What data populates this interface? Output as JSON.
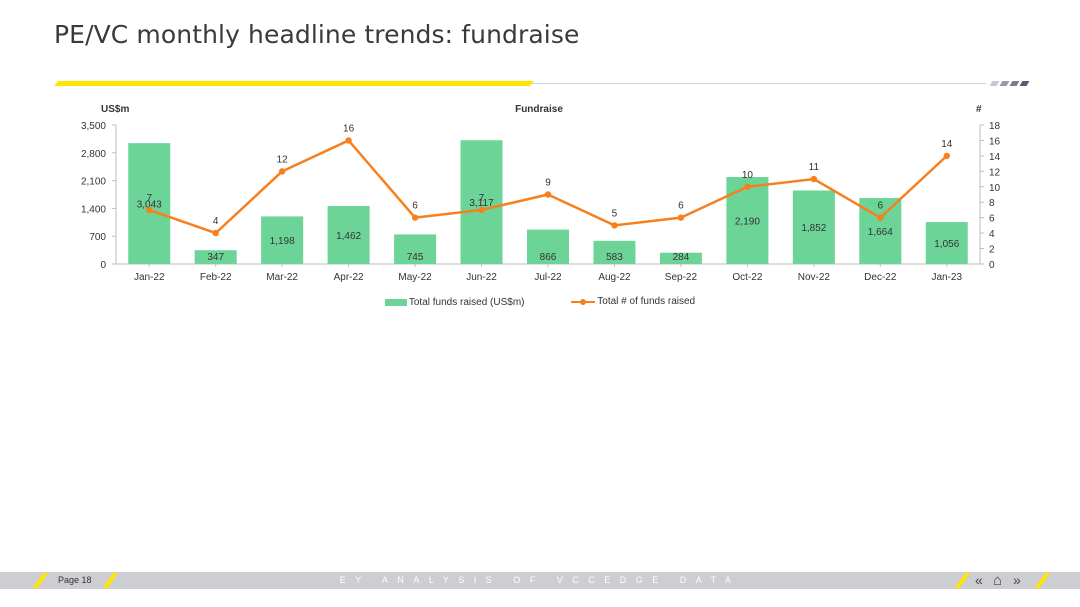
{
  "page": {
    "title": "PE/VC monthly headline trends: fundraise",
    "footer_page": "Page 18",
    "footer_tagline": "EY ANALYSIS OF VCCEDGE DATA",
    "nav": {
      "prev_icon": "«",
      "home_icon": "⌂",
      "next_icon": "»"
    }
  },
  "colors": {
    "bar": "#6dd498",
    "line": "#f77f1d",
    "accent": "#ffe600",
    "footer": "#cdcdd4"
  },
  "chart_data": {
    "type": "bar",
    "title": "Fundraise",
    "ylabel": "US$m",
    "y2label": "#",
    "categories": [
      "Jan-22",
      "Feb-22",
      "Mar-22",
      "Apr-22",
      "May-22",
      "Jun-22",
      "Jul-22",
      "Aug-22",
      "Sep-22",
      "Oct-22",
      "Nov-22",
      "Dec-22",
      "Jan-23"
    ],
    "ylim": [
      0,
      3500
    ],
    "yticks": [
      "0",
      "700",
      "1,400",
      "2,100",
      "2,800",
      "3,500"
    ],
    "y2lim": [
      0,
      18
    ],
    "y2ticks": [
      "0",
      "2",
      "4",
      "6",
      "8",
      "10",
      "12",
      "14",
      "16",
      "18"
    ],
    "series": [
      {
        "name": "Total funds raised (US$m)",
        "type": "bar",
        "values": [
          3043,
          347,
          1198,
          1462,
          745,
          3117,
          866,
          583,
          284,
          2190,
          1852,
          1664,
          1056
        ],
        "labels": [
          "3,043",
          "347",
          "1,198",
          "1,462",
          "745",
          "3,117",
          "866",
          "583",
          "284",
          "2,190",
          "1,852",
          "1,664",
          "1,056"
        ]
      },
      {
        "name": "Total # of funds raised",
        "type": "line",
        "axis": "right",
        "values": [
          7,
          4,
          12,
          16,
          6,
          7,
          9,
          5,
          6,
          10,
          11,
          6,
          14
        ],
        "labels": [
          "7",
          "4",
          "12",
          "16",
          "6",
          "7",
          "9",
          "5",
          "6",
          "10",
          "11",
          "6",
          "14"
        ]
      }
    ],
    "legend_position": "bottom",
    "grid": false
  }
}
